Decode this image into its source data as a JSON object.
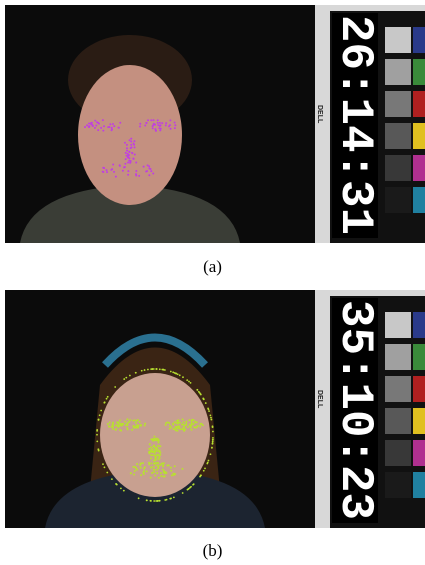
{
  "figures": [
    {
      "timestamp": "26:14:31",
      "brand": "DELL",
      "caption": "(a)"
    },
    {
      "timestamp": "35:10:23",
      "brand": "DELL",
      "caption": "(b)"
    }
  ]
}
